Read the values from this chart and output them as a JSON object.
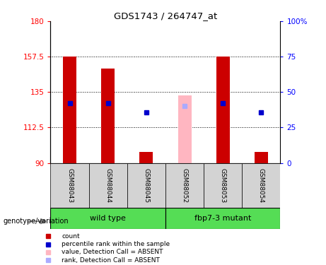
{
  "title": "GDS1743 / 264747_at",
  "samples": [
    "GSM88043",
    "GSM88044",
    "GSM88045",
    "GSM88052",
    "GSM88053",
    "GSM88054"
  ],
  "red_bar_values": [
    157.5,
    150.0,
    97.0,
    null,
    157.5,
    97.0
  ],
  "pink_bar_values": [
    null,
    null,
    null,
    133.0,
    null,
    null
  ],
  "blue_square_values": [
    128.0,
    128.0,
    122.0,
    null,
    128.0,
    122.0
  ],
  "light_blue_square_values": [
    null,
    null,
    null,
    126.0,
    null,
    null
  ],
  "ylim_left": [
    90,
    180
  ],
  "ylim_right": [
    0,
    100
  ],
  "yticks_left": [
    90,
    112.5,
    135,
    157.5,
    180
  ],
  "ytick_labels_left": [
    "90",
    "112.5",
    "135",
    "157.5",
    "180"
  ],
  "yticks_right": [
    0,
    25,
    50,
    75,
    100
  ],
  "ytick_labels_right": [
    "0",
    "25",
    "50",
    "75",
    "100%"
  ],
  "group_label": "genotype/variation",
  "groups_info": [
    {
      "label": "wild type",
      "xstart": -0.5,
      "xend": 2.5
    },
    {
      "label": "fbp7-3 mutant",
      "xstart": 2.5,
      "xend": 5.5
    }
  ],
  "bar_width": 0.35,
  "red_color": "#CC0000",
  "pink_color": "#FFB6C1",
  "blue_color": "#0000CC",
  "light_blue_color": "#AAAAFF",
  "sample_bg_color": "#D3D3D3",
  "group_bg_color": "#55DD55",
  "base_value": 90,
  "legend_items": [
    {
      "color": "#CC0000",
      "label": "count"
    },
    {
      "color": "#0000CC",
      "label": "percentile rank within the sample"
    },
    {
      "color": "#FFB6C1",
      "label": "value, Detection Call = ABSENT"
    },
    {
      "color": "#AAAAFF",
      "label": "rank, Detection Call = ABSENT"
    }
  ]
}
